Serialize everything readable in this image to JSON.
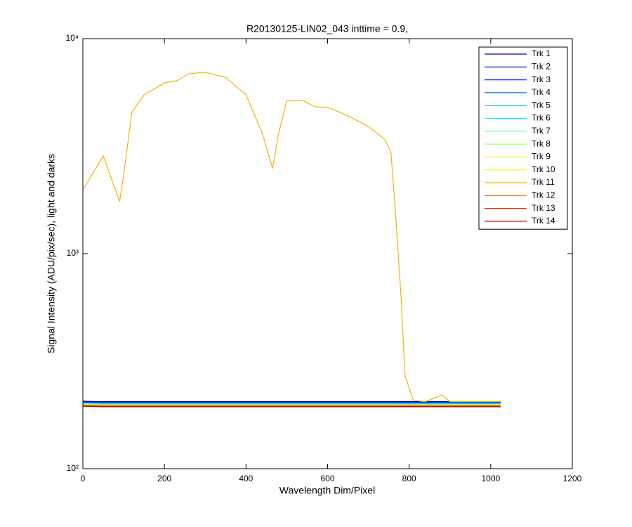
{
  "chart_data": {
    "type": "line",
    "title": "R20130125-LIN02_043 inttime = 0.9,",
    "x_label": "Wavelength Dim/Pixel",
    "y_label": "Signal Intensity (ADU/pix/sec), light and darks",
    "log_y": true,
    "legend": "top-right",
    "xlim": [
      0,
      1200
    ],
    "xticks": [
      0,
      200,
      400,
      600,
      800,
      1000,
      1200
    ],
    "ylim": [
      100,
      10000
    ],
    "yticks": [
      {
        "value": 100,
        "label": "10²"
      },
      {
        "value": 1000,
        "label": "10³"
      },
      {
        "value": 10000,
        "label": "10⁴"
      }
    ],
    "x": [
      0,
      50,
      90,
      100,
      120,
      150,
      200,
      230,
      260,
      300,
      350,
      400,
      440,
      465,
      480,
      500,
      540,
      570,
      600,
      650,
      700,
      740,
      755,
      765,
      780,
      790,
      810,
      840,
      880,
      900,
      1024
    ],
    "series": [
      {
        "name": "Trk 1",
        "color": "#00008f",
        "values": [
          206,
          205,
          205,
          205,
          205,
          205,
          205,
          205,
          205,
          205,
          205,
          205,
          205,
          205,
          205,
          205,
          205,
          205,
          205,
          205,
          205,
          205,
          205,
          205,
          205,
          205,
          205,
          205,
          205,
          205,
          205
        ]
      },
      {
        "name": "Trk 2",
        "color": "#0000cf",
        "values": [
          205,
          204,
          204,
          204,
          204,
          204,
          204,
          204,
          204,
          204,
          204,
          204,
          204,
          204,
          204,
          204,
          204,
          204,
          204,
          204,
          204,
          204,
          204,
          204,
          204,
          204,
          204,
          204,
          204,
          204,
          204
        ]
      },
      {
        "name": "Trk 3",
        "color": "#0020ff",
        "values": [
          204,
          203,
          203,
          203,
          203,
          203,
          203,
          203,
          203,
          203,
          203,
          203,
          203,
          203,
          203,
          203,
          203,
          203,
          203,
          203,
          203,
          203,
          203,
          203,
          203,
          203,
          203,
          203,
          203,
          203,
          203
        ]
      },
      {
        "name": "Trk 4",
        "color": "#0070ff",
        "values": [
          203,
          202,
          202,
          202,
          202,
          202,
          202,
          202,
          202,
          202,
          202,
          202,
          202,
          202,
          202,
          202,
          202,
          202,
          202,
          202,
          202,
          202,
          202,
          202,
          202,
          202,
          202,
          202,
          202,
          202,
          202
        ]
      },
      {
        "name": "Trk 5",
        "color": "#00bfff",
        "values": [
          202,
          201,
          201,
          201,
          201,
          201,
          201,
          201,
          201,
          201,
          201,
          201,
          201,
          201,
          201,
          201,
          201,
          201,
          201,
          201,
          201,
          201,
          201,
          201,
          201,
          201,
          201,
          201,
          201,
          201,
          201
        ]
      },
      {
        "name": "Trk 6",
        "color": "#10efef",
        "values": [
          201,
          200,
          200,
          200,
          200,
          200,
          200,
          200,
          200,
          200,
          200,
          200,
          200,
          200,
          200,
          200,
          200,
          200,
          200,
          200,
          200,
          200,
          200,
          200,
          200,
          200,
          200,
          200,
          200,
          200,
          200
        ]
      },
      {
        "name": "Trk 7",
        "color": "#50ffaf",
        "values": [
          200,
          199,
          199,
          199,
          199,
          199,
          199,
          199,
          199,
          199,
          199,
          199,
          199,
          199,
          199,
          199,
          199,
          199,
          199,
          199,
          199,
          199,
          199,
          199,
          199,
          199,
          199,
          199,
          199,
          199,
          199
        ]
      },
      {
        "name": "Trk 8",
        "color": "#9fff60",
        "values": [
          200,
          198,
          198,
          198,
          198,
          198,
          198,
          198,
          198,
          198,
          198,
          198,
          198,
          198,
          198,
          198,
          198,
          198,
          198,
          198,
          198,
          198,
          198,
          198,
          198,
          198,
          198,
          198,
          198,
          198,
          198
        ]
      },
      {
        "name": "Trk 9",
        "color": "#dfff20",
        "values": [
          199,
          197,
          197,
          197,
          197,
          197,
          197,
          197,
          197,
          197,
          197,
          197,
          197,
          197,
          197,
          197,
          197,
          197,
          197,
          197,
          197,
          197,
          197,
          197,
          197,
          197,
          197,
          197,
          197,
          197,
          197
        ]
      },
      {
        "name": "Trk 10",
        "color": "#ffef00",
        "values": [
          198,
          197,
          197,
          197,
          197,
          197,
          197,
          197,
          197,
          197,
          197,
          197,
          197,
          197,
          197,
          197,
          197,
          197,
          197,
          197,
          197,
          197,
          197,
          197,
          197,
          197,
          197,
          197,
          197,
          197,
          197
        ]
      },
      {
        "name": "Trk 11",
        "color": "#f0b400",
        "values": [
          1980,
          2850,
          1750,
          2310,
          4540,
          5480,
          6220,
          6370,
          6870,
          6970,
          6610,
          5480,
          3620,
          2490,
          3620,
          5150,
          5150,
          4820,
          4790,
          4380,
          3900,
          3410,
          3000,
          1710,
          641,
          270,
          208,
          205,
          220,
          205,
          205
        ]
      },
      {
        "name": "Trk 12",
        "color": "#ff6000",
        "values": [
          197,
          196,
          196,
          196,
          196,
          196,
          196,
          196,
          196,
          196,
          196,
          196,
          196,
          196,
          196,
          196,
          196,
          196,
          196,
          196,
          196,
          196,
          196,
          196,
          196,
          196,
          196,
          196,
          196,
          196,
          196
        ]
      },
      {
        "name": "Trk 13",
        "color": "#ef2000",
        "values": [
          196,
          195,
          195,
          195,
          195,
          195,
          195,
          195,
          195,
          195,
          195,
          195,
          195,
          195,
          195,
          195,
          195,
          195,
          195,
          195,
          195,
          195,
          195,
          195,
          195,
          195,
          195,
          195,
          195,
          195,
          195
        ]
      },
      {
        "name": "Trk 14",
        "color": "#bf0000",
        "values": [
          195,
          194,
          194,
          194,
          194,
          194,
          194,
          194,
          194,
          194,
          194,
          194,
          194,
          194,
          194,
          194,
          194,
          194,
          194,
          194,
          194,
          194,
          194,
          194,
          194,
          194,
          194,
          194,
          194,
          194,
          194
        ]
      }
    ]
  }
}
